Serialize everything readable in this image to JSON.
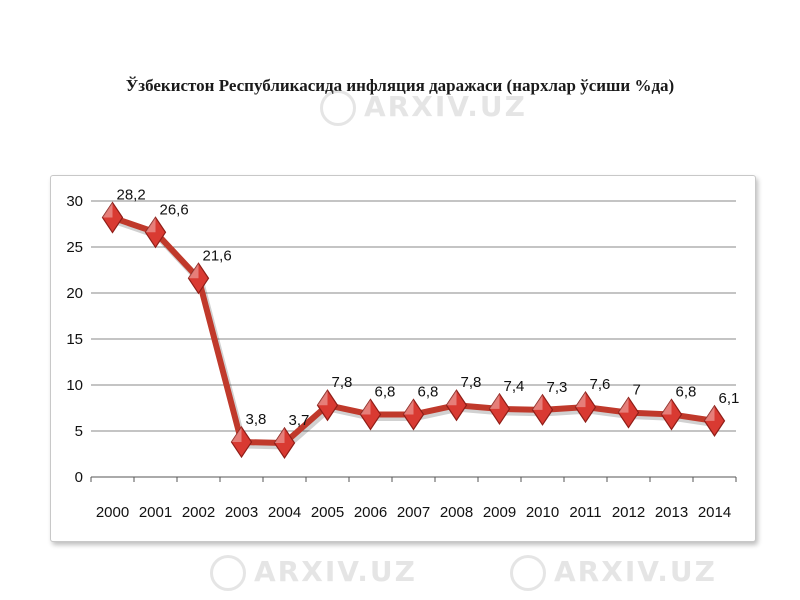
{
  "page": {
    "title": "Ўзбекистон Республикасида инфляция даражаси (нархлар ўсиши %да)"
  },
  "watermark": {
    "text": "ARXIV.UZ"
  },
  "colors": {
    "line": "#c0392b",
    "marker": "#d93a32",
    "marker_dark": "#8f1d17",
    "grid": "#8a8a8a",
    "text": "#111111"
  },
  "chart_data": {
    "type": "line",
    "title": "",
    "xlabel": "",
    "ylabel": "",
    "categories": [
      "2000",
      "2001",
      "2002",
      "2003",
      "2004",
      "2005",
      "2006",
      "2007",
      "2008",
      "2009",
      "2010",
      "2011",
      "2012",
      "2013",
      "2014"
    ],
    "series": [
      {
        "values": [
          28.2,
          26.6,
          21.6,
          3.8,
          3.7,
          7.8,
          6.8,
          6.8,
          7.8,
          7.4,
          7.3,
          7.6,
          7.0,
          6.8,
          6.1
        ],
        "labels": [
          "28,2",
          "26,6",
          "21,6",
          "3,8",
          "3,7",
          "7,8",
          "6,8",
          "6,8",
          "7,8",
          "7,4",
          "7,3",
          "7,6",
          "7",
          "6,8",
          "6,1"
        ]
      }
    ],
    "ylim": [
      0,
      30
    ],
    "yticks": [
      "0",
      "5",
      "10",
      "15",
      "20",
      "25",
      "30"
    ],
    "grid": true,
    "legend": "none",
    "marker": "diamond"
  }
}
